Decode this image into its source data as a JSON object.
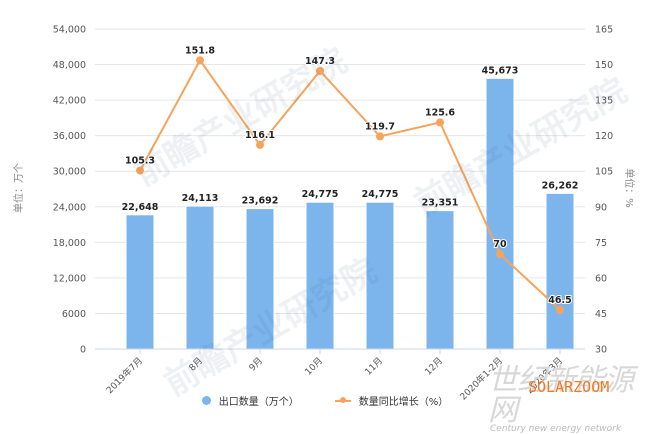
{
  "chart_data": {
    "type": "bar+line",
    "title": "",
    "categories": [
      "2019年7月",
      "8月",
      "9月",
      "10月",
      "11月",
      "12月",
      "2020年1-2月",
      "2020年3月"
    ],
    "series": [
      {
        "name": "出口数量（万个）",
        "type": "bar",
        "axis": "left",
        "color": "#7cb5ec",
        "values": [
          22648,
          24113,
          23692,
          24775,
          24775,
          23351,
          45673,
          26262
        ],
        "labels": [
          "22,648",
          "24,113",
          "23,692",
          "24,775",
          "24,775",
          "23,351",
          "45,673",
          "26,262"
        ]
      },
      {
        "name": "数量同比增长（%）",
        "type": "line",
        "axis": "right",
        "color": "#f7a35c",
        "values": [
          105.3,
          151.8,
          116.1,
          147.3,
          119.7,
          125.6,
          70,
          46.5
        ],
        "labels": [
          "105.3",
          "151.8",
          "116.1",
          "147.3",
          "119.7",
          "125.6",
          "70",
          "46.5"
        ]
      }
    ],
    "left_axis": {
      "label": "单位：万个",
      "ylim": [
        0,
        54000
      ],
      "ticks": [
        0,
        6000,
        12000,
        18000,
        24000,
        30000,
        36000,
        42000,
        48000,
        54000
      ],
      "tick_labels": [
        "0",
        "6000",
        "12,000",
        "18,000",
        "24,000",
        "30,000",
        "36,000",
        "42,000",
        "48,000",
        "54,000"
      ]
    },
    "right_axis": {
      "label": "单位：%",
      "ylim": [
        30,
        165
      ],
      "ticks": [
        30,
        45,
        60,
        75,
        90,
        105,
        120,
        135,
        150,
        165
      ],
      "tick_labels": [
        "30",
        "45",
        "60",
        "75",
        "90",
        "105",
        "120",
        "135",
        "150",
        "165"
      ]
    },
    "grid": true,
    "legend_position": "bottom"
  },
  "legend": {
    "bar_label": "出口数量（万个）",
    "line_label": "数量同比增长（%）"
  },
  "watermarks": {
    "main": "前瞻产业研究院",
    "brand_cn": "世纪新能源网",
    "brand_en": "SOLARZOOM",
    "brand_sub": "Century new energy network"
  }
}
